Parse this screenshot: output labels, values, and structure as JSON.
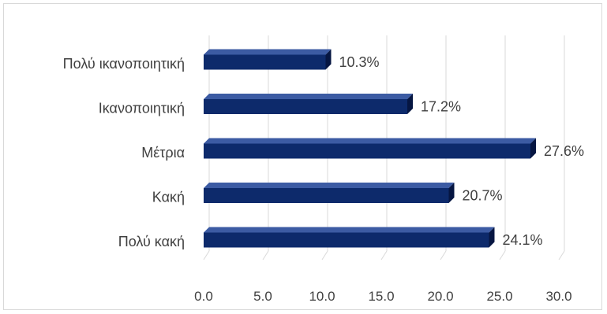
{
  "chart_data": {
    "type": "bar",
    "orientation": "horizontal",
    "categories": [
      "Πολύ ικανοποιητική",
      "Ικανοποιητική",
      "Μέτρια",
      "Κακή",
      "Πολύ κακή"
    ],
    "values": [
      10.3,
      17.2,
      27.6,
      20.7,
      24.1
    ],
    "data_labels": [
      "10.3%",
      "17.2%",
      "27.6%",
      "20.7%",
      "24.1%"
    ],
    "x_ticks": [
      "0.0",
      "5.0",
      "10.0",
      "15.0",
      "20.0",
      "25.0",
      "30.0"
    ],
    "xlim": [
      0,
      30
    ],
    "grid": true,
    "legend": "none",
    "bar_color": "#0d2a6b",
    "bar_dark_color": "#061642",
    "bar_light_color": "#3c5ba3",
    "grid_color": "#d9d9d9",
    "text_color": "#404040"
  }
}
